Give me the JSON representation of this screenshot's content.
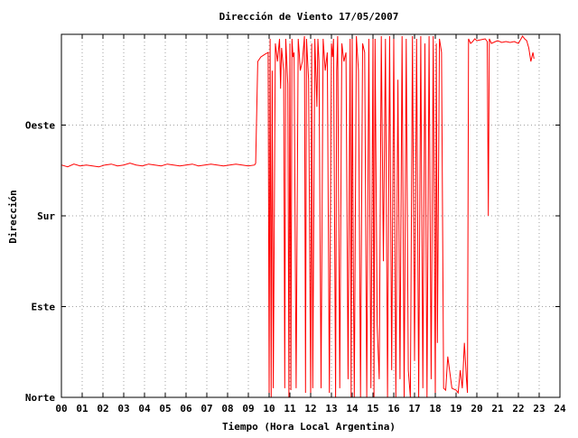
{
  "chart_data": {
    "type": "line",
    "title": "Dirección de Viento 17/05/2007",
    "xlabel": "Tiempo (Hora Local Argentina)",
    "ylabel": "Dirección",
    "xlim": [
      0,
      24
    ],
    "ylim": [
      0,
      400
    ],
    "x_ticks": [
      {
        "value": 0,
        "label": "00"
      },
      {
        "value": 1,
        "label": "01"
      },
      {
        "value": 2,
        "label": "02"
      },
      {
        "value": 3,
        "label": "03"
      },
      {
        "value": 4,
        "label": "04"
      },
      {
        "value": 5,
        "label": "05"
      },
      {
        "value": 6,
        "label": "06"
      },
      {
        "value": 7,
        "label": "07"
      },
      {
        "value": 8,
        "label": "08"
      },
      {
        "value": 9,
        "label": "09"
      },
      {
        "value": 10,
        "label": "10"
      },
      {
        "value": 11,
        "label": "11"
      },
      {
        "value": 12,
        "label": "12"
      },
      {
        "value": 13,
        "label": "13"
      },
      {
        "value": 14,
        "label": "14"
      },
      {
        "value": 15,
        "label": "15"
      },
      {
        "value": 16,
        "label": "16"
      },
      {
        "value": 17,
        "label": "17"
      },
      {
        "value": 18,
        "label": "18"
      },
      {
        "value": 19,
        "label": "19"
      },
      {
        "value": 20,
        "label": "20"
      },
      {
        "value": 21,
        "label": "21"
      },
      {
        "value": 22,
        "label": "22"
      },
      {
        "value": 23,
        "label": "23"
      },
      {
        "value": 24,
        "label": "24"
      }
    ],
    "y_ticks": [
      {
        "value": 0,
        "label": "Norte"
      },
      {
        "value": 100,
        "label": "Este"
      },
      {
        "value": 200,
        "label": "Sur"
      },
      {
        "value": 300,
        "label": "Oeste"
      }
    ],
    "grid": true,
    "series": [
      {
        "color": "#ff0000",
        "x": [
          0.0,
          0.3,
          0.6,
          0.9,
          1.2,
          1.5,
          1.8,
          2.1,
          2.4,
          2.7,
          3.0,
          3.3,
          3.6,
          3.9,
          4.2,
          4.5,
          4.8,
          5.1,
          5.4,
          5.7,
          6.0,
          6.3,
          6.6,
          6.9,
          7.2,
          7.5,
          7.8,
          8.1,
          8.4,
          8.7,
          9.0,
          9.3,
          9.35,
          9.45,
          9.6,
          9.8,
          9.95,
          10.0,
          10.05,
          10.1,
          10.15,
          10.2,
          10.3,
          10.4,
          10.5,
          10.55,
          10.6,
          10.7,
          10.75,
          10.8,
          10.9,
          10.95,
          11.0,
          11.05,
          11.1,
          11.15,
          11.2,
          11.3,
          11.4,
          11.45,
          11.5,
          11.6,
          11.7,
          11.75,
          11.8,
          11.9,
          12.0,
          12.05,
          12.1,
          12.2,
          12.3,
          12.35,
          12.4,
          12.5,
          12.6,
          12.7,
          12.8,
          12.9,
          13.0,
          13.05,
          13.1,
          13.2,
          13.25,
          13.3,
          13.4,
          13.5,
          13.6,
          13.7,
          13.8,
          13.9,
          13.95,
          14.0,
          14.05,
          14.1,
          14.2,
          14.3,
          14.4,
          14.5,
          14.6,
          14.7,
          14.8,
          14.9,
          15.0,
          15.05,
          15.1,
          15.2,
          15.3,
          15.4,
          15.5,
          15.6,
          15.7,
          15.8,
          15.9,
          16.0,
          16.1,
          16.2,
          16.3,
          16.4,
          16.5,
          16.6,
          16.7,
          16.8,
          16.9,
          17.0,
          17.1,
          17.2,
          17.3,
          17.4,
          17.5,
          17.6,
          17.7,
          17.8,
          17.9,
          18.0,
          18.05,
          18.1,
          18.2,
          18.3,
          18.4,
          18.5,
          18.6,
          18.8,
          19.0,
          19.1,
          19.2,
          19.3,
          19.4,
          19.5,
          19.55,
          19.6,
          19.7,
          19.8,
          19.9,
          20.0,
          20.2,
          20.4,
          20.5,
          20.55,
          20.6,
          20.7,
          20.9,
          21.0,
          21.2,
          21.4,
          21.6,
          21.8,
          22.0,
          22.2,
          22.3,
          22.4,
          22.5,
          22.6,
          22.7,
          22.75
        ],
        "y": [
          256,
          254,
          257,
          255,
          256,
          255,
          254,
          256,
          257,
          255,
          256,
          258,
          256,
          255,
          257,
          256,
          255,
          257,
          256,
          255,
          256,
          257,
          255,
          256,
          257,
          256,
          255,
          256,
          257,
          256,
          255,
          256,
          258,
          370,
          375,
          378,
          380,
          5,
          395,
          0,
          360,
          10,
          390,
          370,
          395,
          340,
          385,
          360,
          10,
          395,
          345,
          0,
          390,
          8,
          395,
          375,
          380,
          10,
          395,
          380,
          360,
          370,
          398,
          5,
          395,
          350,
          0,
          390,
          10,
          395,
          320,
          395,
          370,
          10,
          395,
          360,
          380,
          5,
          390,
          375,
          395,
          0,
          360,
          398,
          10,
          390,
          370,
          380,
          20,
          395,
          0,
          398,
          150,
          0,
          398,
          360,
          0,
          390,
          380,
          0,
          395,
          10,
          398,
          0,
          395,
          80,
          20,
          398,
          150,
          395,
          0,
          398,
          30,
          395,
          0,
          350,
          20,
          398,
          0,
          395,
          30,
          0,
          398,
          40,
          395,
          0,
          398,
          10,
          390,
          0,
          398,
          20,
          398,
          0,
          390,
          60,
          395,
          380,
          10,
          8,
          45,
          10,
          8,
          5,
          30,
          10,
          60,
          20,
          5,
          395,
          390,
          392,
          395,
          393,
          394,
          395,
          392,
          200,
          395,
          390,
          392,
          393,
          391,
          392,
          391,
          392,
          390,
          398,
          395,
          393,
          385,
          370,
          380,
          373
        ]
      }
    ]
  }
}
